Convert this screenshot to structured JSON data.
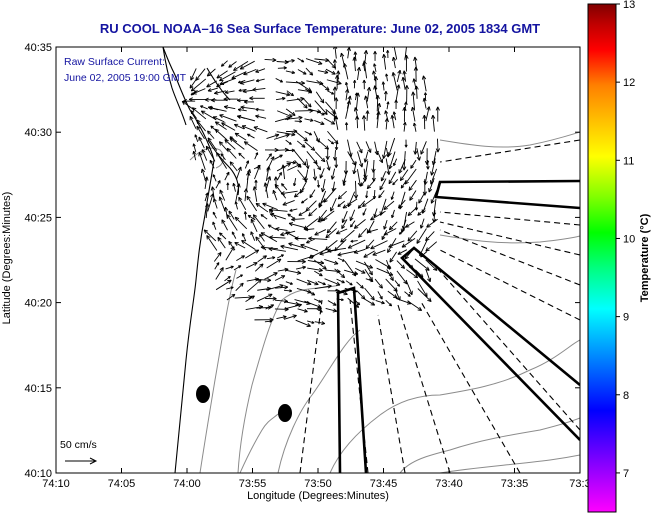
{
  "title": "RU COOL  NOAA–16  Sea Surface Temperature:  June 02, 2005 1834 GMT",
  "current_label_line1": "Raw Surface Current:",
  "current_label_line2": "June 02, 2005 19:00 GMT",
  "x_axis_label": "Longitude (Degrees:Minutes)",
  "y_axis_label": "Latitude (Degrees:Minutes)",
  "x_ticks": [
    "74:10",
    "74:05",
    "74:00",
    "73:55",
    "73:50",
    "73:45",
    "73:40",
    "73:35",
    "73:3"
  ],
  "y_ticks": [
    "40:35",
    "40:30",
    "40:25",
    "40:20",
    "40:15",
    "40:10"
  ],
  "scale_label": "50 cm/s",
  "colorbar": {
    "label": "Temperature (°C)",
    "ticks": [
      "13",
      "12",
      "11",
      "10",
      "9",
      "8",
      "7"
    ],
    "min": 6.5,
    "max": 13,
    "colors": [
      "#ff00ff",
      "#8000ff",
      "#0000ff",
      "#0080ff",
      "#00ffff",
      "#00ff80",
      "#00ff00",
      "#80ff00",
      "#ffff00",
      "#ffc000",
      "#ff8000",
      "#ff0000",
      "#c00000",
      "#800000"
    ]
  },
  "colors": {
    "title": "#1414a0",
    "coast": "#000000",
    "bathymetry": "#8c8c8c"
  }
}
